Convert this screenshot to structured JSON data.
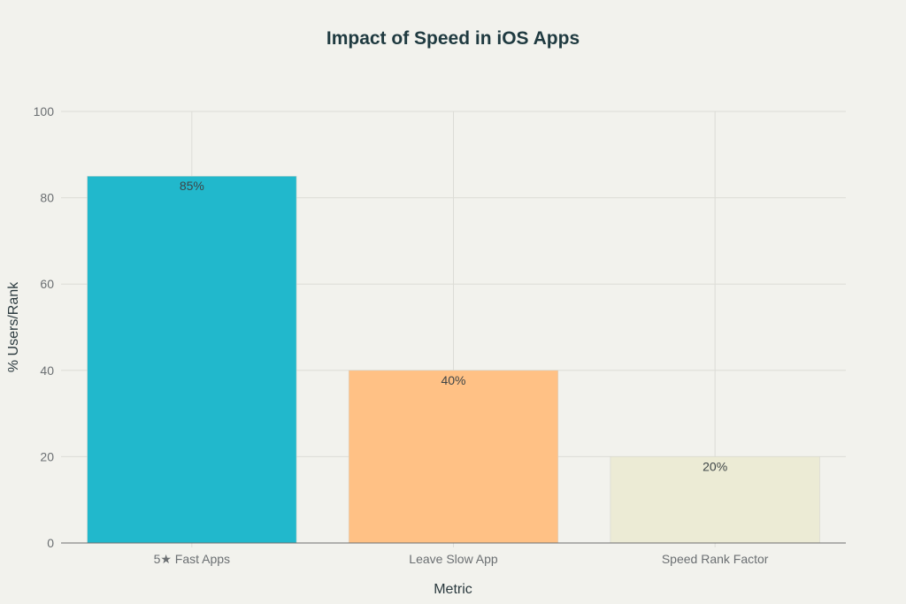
{
  "chart_data": {
    "type": "bar",
    "title": "Impact of Speed in iOS Apps",
    "xlabel": "Metric",
    "ylabel": "% Users/Rank",
    "categories": [
      "5★ Fast Apps",
      "Leave Slow App",
      "Speed Rank Factor"
    ],
    "values": [
      85,
      40,
      20
    ],
    "data_labels": [
      "85%",
      "40%",
      "20%"
    ],
    "colors": [
      "#21b8cc",
      "#ffc185",
      "#ecebd5"
    ],
    "ylim": [
      0,
      100
    ],
    "yticks": [
      0,
      20,
      40,
      60,
      80,
      100
    ],
    "grid": true,
    "legend": "none"
  }
}
